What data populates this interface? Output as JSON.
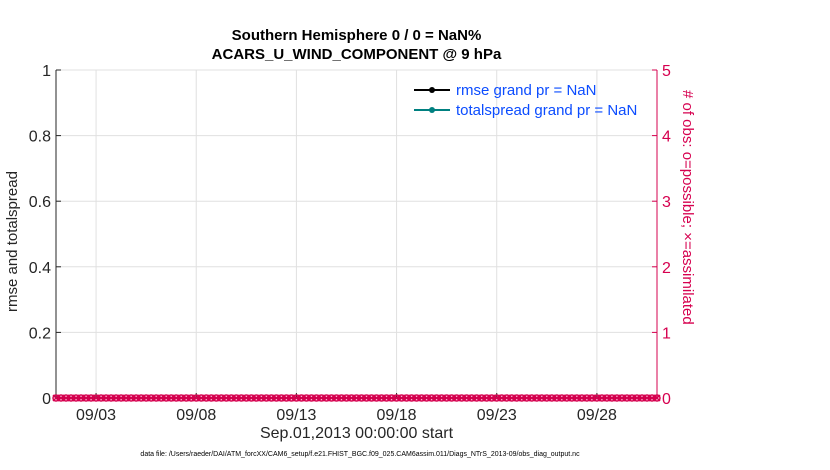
{
  "title_line1": "Southern Hemisphere 0 / 0 = NaN%",
  "title_line2": "ACARS_U_WIND_COMPONENT @ 9 hPa",
  "footer": "data file: /Users/raeder/DAI/ATM_forcXX/CAM6_setup/f.e21.FHIST_BGC.f09_025.CAM6assim.011/Diags_NTrS_2013-09/obs_diag_output.nc",
  "chart_data": {
    "type": "line",
    "xlabel": "Sep.01,2013 00:00:00 start",
    "ylabel_left": "rmse and totalspread",
    "ylabel_right": "# of obs: o=possible; ×=assimilated",
    "x_range": [
      "2013-09-01 00:00",
      "2013-10-01 00:00"
    ],
    "x_ticks": [
      "09/03",
      "09/08",
      "09/13",
      "09/18",
      "09/23",
      "09/28"
    ],
    "x_tick_days": [
      3,
      8,
      13,
      18,
      23,
      28
    ],
    "ylim_left": [
      0,
      1
    ],
    "yticks_left": [
      "0",
      "0.2",
      "0.4",
      "0.6",
      "0.8",
      "1"
    ],
    "ylim_right": [
      0,
      5
    ],
    "yticks_right": [
      "0",
      "1",
      "2",
      "3",
      "4",
      "5"
    ],
    "grid": true,
    "legend_position": "top-right",
    "series": [
      {
        "name": "rmse grand pr = NaN",
        "values": [],
        "color": "#000000"
      },
      {
        "name": "totalspread grand pr = NaN",
        "values": [],
        "color": "#008080"
      }
    ],
    "obs_counts": {
      "interval_hours": 6,
      "possible": 0,
      "assimilated": 0,
      "color": "#d6004f"
    }
  }
}
